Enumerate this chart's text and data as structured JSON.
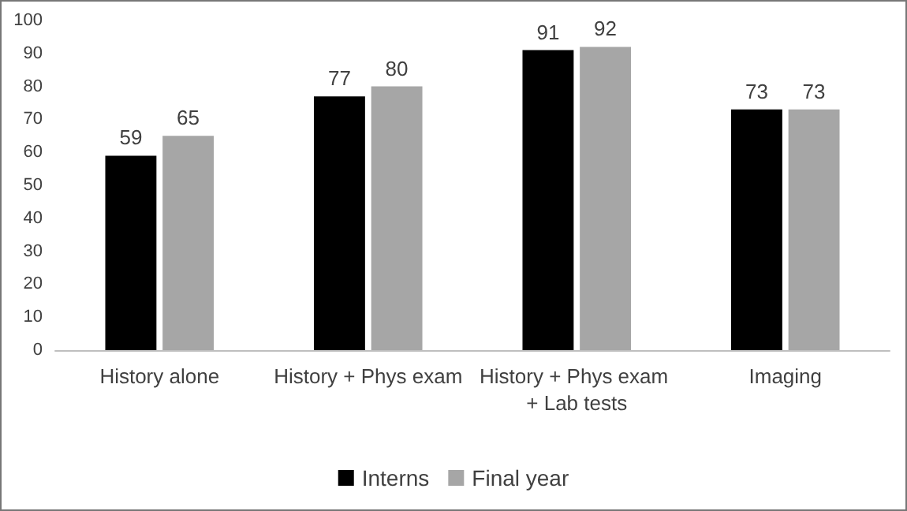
{
  "chart_data": {
    "type": "bar",
    "categories": [
      "History alone",
      "History + Phys exam",
      "History + Phys exam + Lab tests",
      "Imaging"
    ],
    "series": [
      {
        "name": "Interns",
        "color": "#000000",
        "values": [
          59,
          77,
          91,
          73
        ]
      },
      {
        "name": "Final year",
        "color": "#a6a6a6",
        "values": [
          65,
          80,
          92,
          73
        ]
      }
    ],
    "ylim": [
      0,
      100
    ],
    "yticks": [
      0,
      10,
      20,
      30,
      40,
      50,
      60,
      70,
      80,
      90,
      100
    ],
    "grid": false,
    "legend": "bottom",
    "data_labels": true
  }
}
